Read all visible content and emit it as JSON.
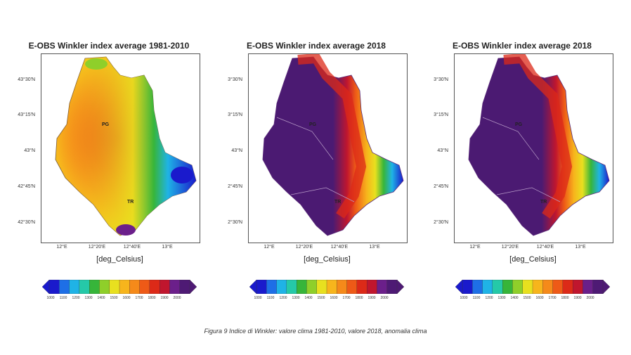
{
  "panels": [
    {
      "title": "E-OBS Winkler index average 1981-2010",
      "y_ticks": [
        "43°30'N",
        "43°15'N",
        "43°N",
        "42°45'N",
        "42°30'N"
      ],
      "x_ticks": [
        "12°E",
        "12°20'E",
        "12°40'E",
        "13°E"
      ],
      "unit_label": "[deg_Celsius]",
      "colorbar_ticks": [
        "1000",
        "1100",
        "1200",
        "1300",
        "1400",
        "1500",
        "1600",
        "1700",
        "1800",
        "1900",
        "2000"
      ],
      "place_codes": [
        "PG",
        "TR"
      ]
    },
    {
      "title": "E-OBS Winkler index average 2018",
      "y_ticks": [
        "3°30'N",
        "3°15'N",
        "43°N",
        "2°45'N",
        "2°30'N"
      ],
      "x_ticks": [
        "12°E",
        "12°20'E",
        "12°40'E",
        "13°E"
      ],
      "unit_label": "[deg_Celsius]",
      "colorbar_ticks": [
        "1000",
        "1100",
        "1200",
        "1300",
        "1400",
        "1500",
        "1600",
        "1700",
        "1800",
        "1900",
        "2000"
      ],
      "place_codes": [
        "PG",
        "TR"
      ]
    },
    {
      "title": "E-OBS Winkler index average 2018",
      "y_ticks": [
        "3°30'N",
        "3°15'N",
        "43°N",
        "2°45'N",
        "2°30'N"
      ],
      "x_ticks": [
        "12°E",
        "12°20'E",
        "12°40'E",
        "13°E"
      ],
      "unit_label": "[deg_Celsius]",
      "colorbar_ticks": [
        "1000",
        "1100",
        "1200",
        "1300",
        "1400",
        "1500",
        "1600",
        "1700",
        "1800",
        "1900",
        "2000"
      ],
      "place_codes": [
        "PG",
        "TR"
      ]
    }
  ],
  "colors": {
    "scale": [
      "#1a1acc",
      "#1e6fe6",
      "#1fb3e6",
      "#25c9a8",
      "#37b53a",
      "#8fcf2a",
      "#e8e01f",
      "#f7b51c",
      "#f58a1a",
      "#ee5a17",
      "#dc2a18",
      "#c0162e",
      "#6b1f8a",
      "#4e1a74"
    ],
    "purple": "#4b1a72",
    "border": "#b89cc8"
  },
  "caption": "Figura 9 Indice di Winkler: valore clima 1981-2010, valore 2018, anomalia clima"
}
